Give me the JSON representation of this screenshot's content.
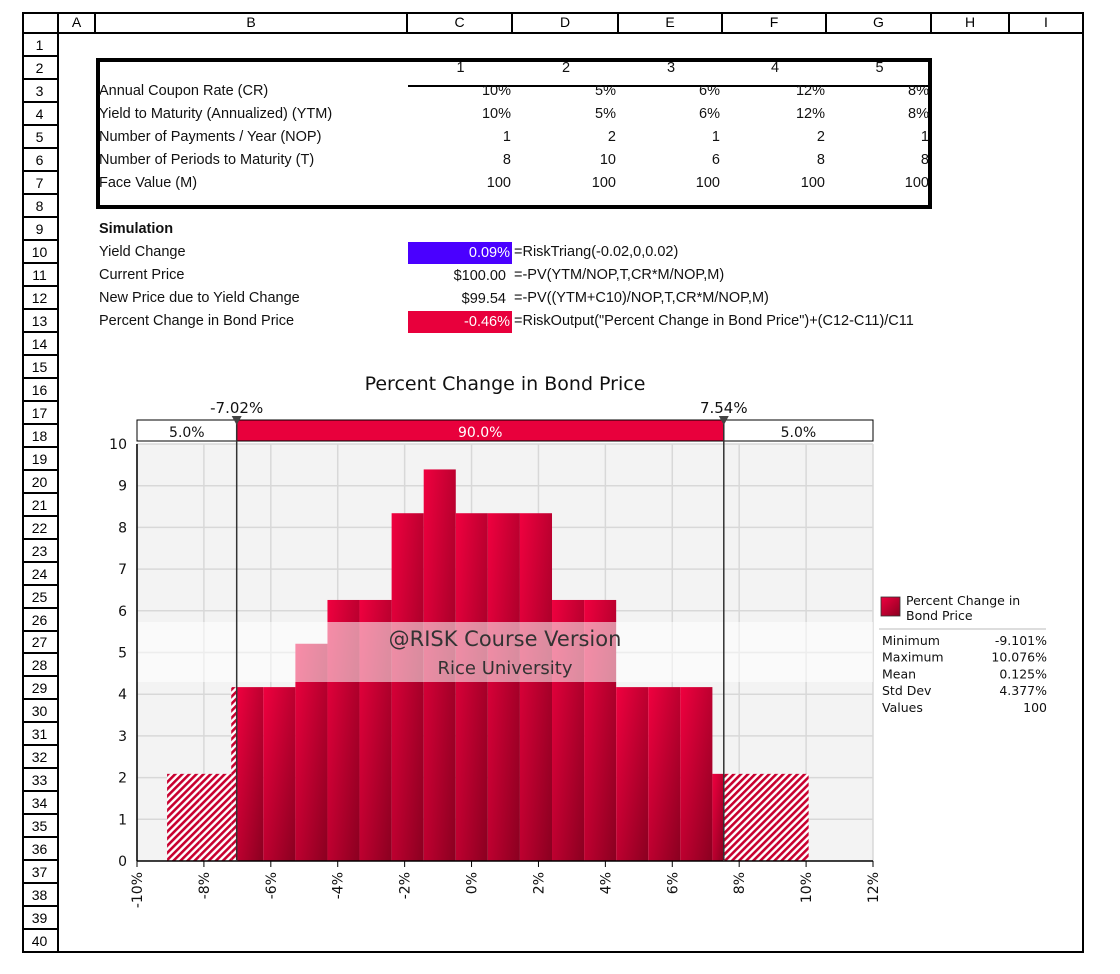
{
  "sheet": {
    "columns": [
      "A",
      "B",
      "C",
      "D",
      "E",
      "F",
      "G",
      "H",
      "I"
    ],
    "rows": [
      "1",
      "2",
      "3",
      "4",
      "5",
      "6",
      "7",
      "8",
      "9",
      "10",
      "11",
      "12",
      "13",
      "14",
      "15",
      "16",
      "17",
      "18",
      "19",
      "20",
      "21",
      "22",
      "23",
      "24",
      "25",
      "26",
      "27",
      "28",
      "29",
      "30",
      "31",
      "32",
      "33",
      "34",
      "35",
      "36",
      "37",
      "38",
      "39",
      "40"
    ]
  },
  "bond_table": {
    "headers": [
      "1",
      "2",
      "3",
      "4",
      "5"
    ],
    "rows": [
      {
        "label": "Annual Coupon Rate (CR)",
        "values": [
          "10%",
          "5%",
          "6%",
          "12%",
          "8%"
        ]
      },
      {
        "label": "Yield to Maturity (Annualized) (YTM)",
        "values": [
          "10%",
          "5%",
          "6%",
          "12%",
          "8%"
        ]
      },
      {
        "label": "Number of Payments / Year (NOP)",
        "values": [
          "1",
          "2",
          "1",
          "2",
          "1"
        ]
      },
      {
        "label": "Number of Periods to Maturity (T)",
        "values": [
          "8",
          "10",
          "6",
          "8",
          "8"
        ]
      },
      {
        "label": "Face Value (M)",
        "values": [
          "100",
          "100",
          "100",
          "100",
          "100"
        ]
      }
    ]
  },
  "simulation": {
    "heading": "Simulation",
    "rows": [
      {
        "label": "Yield Change",
        "value": "0.09%",
        "formula": "=RiskTriang(-0.02,0,0.02)",
        "fill": "#4a00ff"
      },
      {
        "label": "Current Price",
        "value": "$100.00",
        "formula": "=-PV(YTM/NOP,T,CR*M/NOP,M)",
        "fill": ""
      },
      {
        "label": "New Price due to Yield Change",
        "value": "$99.54",
        "formula": "=-PV((YTM+C10)/NOP,T,CR*M/NOP,M)",
        "fill": ""
      },
      {
        "label": "Percent Change in Bond Price",
        "value": "-0.46%",
        "formula": "=RiskOutput(\"Percent Change in Bond Price\")+(C12-C11)/C11",
        "fill": "#e8003c"
      }
    ]
  },
  "chart_data": {
    "type": "bar",
    "title": "Percent Change in Bond Price",
    "xlabel": "",
    "ylabel": "",
    "xlim": [
      -10,
      12
    ],
    "ylim": [
      0,
      10
    ],
    "x_ticks": [
      "-10%",
      "-8%",
      "-6%",
      "-4%",
      "-2%",
      "0%",
      "2%",
      "4%",
      "6%",
      "8%",
      "10%",
      "12%"
    ],
    "y_ticks": [
      "0",
      "1",
      "2",
      "3",
      "4",
      "5",
      "6",
      "7",
      "8",
      "9",
      "10"
    ],
    "grid": true,
    "bin_range_percent": [
      -9.101,
      10.076
    ],
    "values": [
      2.09,
      2.09,
      4.17,
      4.17,
      5.21,
      6.26,
      6.26,
      8.34,
      9.39,
      8.34,
      8.34,
      8.34,
      6.26,
      6.26,
      4.17,
      4.17,
      4.17,
      2.09,
      2.09,
      2.09
    ],
    "delimiters": {
      "left": {
        "value": -7.02,
        "label": "-7.02%"
      },
      "right": {
        "value": 7.54,
        "label": "7.54%"
      },
      "bands": [
        "5.0%",
        "90.0%",
        "5.0%"
      ]
    },
    "color": "#e8003c",
    "legend": {
      "position": "right",
      "series_name": "Percent Change in Bond Price",
      "series_lines": [
        "Percent Change in",
        "Bond Price"
      ],
      "stats": [
        {
          "label": "Minimum",
          "value": "-9.101%"
        },
        {
          "label": "Maximum",
          "value": "10.076%"
        },
        {
          "label": "Mean",
          "value": "0.125%"
        },
        {
          "label": "Std Dev",
          "value": "4.377%"
        },
        {
          "label": "Values",
          "value": "100"
        }
      ]
    },
    "watermark": [
      "@RISK Course Version",
      "Rice University"
    ]
  }
}
